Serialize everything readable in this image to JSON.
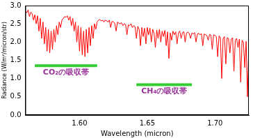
{
  "chart_data": {
    "type": "line",
    "x_label": "Wavelength (micron)",
    "y_label": "Radiance (W/m²/micron/str)",
    "color": "#ff0000",
    "grid": false,
    "xlim": [
      1.56,
      1.725
    ],
    "xticks": [
      {
        "value": 1.6,
        "label": "1.60"
      },
      {
        "value": 1.65,
        "label": "1.65"
      },
      {
        "value": 1.7,
        "label": "1.70"
      }
    ],
    "ylim": [
      0,
      3
    ],
    "yticks": [
      {
        "value": 0,
        "label": "0.0"
      },
      0.5,
      {
        "value": 1,
        "label": "1.0"
      },
      1.5,
      {
        "value": 2,
        "label": "2.0"
      },
      2.5,
      {
        "value": 3,
        "label": "3.0"
      }
    ],
    "annotations": [
      {
        "text": "CO₂の吸収帯",
        "x": [
          1.567,
          1.613
        ],
        "y": 1.35,
        "color": "#33cc33"
      },
      {
        "text": "CH₄の吸収帯",
        "x": [
          1.642,
          1.683
        ],
        "y": 0.83,
        "color": "#33cc33"
      }
    ],
    "x": [
      1.56,
      1.561,
      1.562,
      1.563,
      1.564,
      1.565,
      1.566,
      1.567,
      1.568,
      1.569,
      1.57,
      1.571,
      1.572,
      1.573,
      1.574,
      1.575,
      1.576,
      1.577,
      1.578,
      1.579,
      1.58,
      1.581,
      1.582,
      1.583,
      1.584,
      1.585,
      1.586,
      1.587,
      1.588,
      1.589,
      1.59,
      1.591,
      1.592,
      1.593,
      1.594,
      1.595,
      1.596,
      1.597,
      1.598,
      1.599,
      1.6,
      1.601,
      1.602,
      1.603,
      1.604,
      1.605,
      1.606,
      1.607,
      1.608,
      1.609,
      1.61,
      1.611,
      1.612,
      1.613,
      1.614,
      1.615,
      1.616,
      1.617,
      1.618,
      1.619,
      1.62,
      1.621,
      1.622,
      1.623,
      1.624,
      1.625,
      1.626,
      1.627,
      1.628,
      1.629,
      1.63,
      1.631,
      1.632,
      1.633,
      1.634,
      1.635,
      1.636,
      1.637,
      1.638,
      1.639,
      1.64,
      1.641,
      1.642,
      1.643,
      1.644,
      1.645,
      1.646,
      1.647,
      1.648,
      1.649,
      1.65,
      1.651,
      1.652,
      1.653,
      1.654,
      1.655,
      1.656,
      1.657,
      1.658,
      1.659,
      1.66,
      1.661,
      1.662,
      1.663,
      1.664,
      1.665,
      1.666,
      1.667,
      1.668,
      1.669,
      1.67,
      1.671,
      1.672,
      1.673,
      1.674,
      1.675,
      1.676,
      1.677,
      1.678,
      1.679,
      1.68,
      1.681,
      1.682,
      1.683,
      1.684,
      1.685,
      1.686,
      1.687,
      1.688,
      1.689,
      1.69,
      1.691,
      1.692,
      1.693,
      1.694,
      1.695,
      1.696,
      1.697,
      1.698,
      1.699,
      1.7,
      1.701,
      1.702,
      1.703,
      1.704,
      1.705,
      1.706,
      1.707,
      1.708,
      1.709,
      1.71,
      1.711,
      1.712,
      1.713,
      1.714,
      1.715,
      1.716,
      1.717,
      1.718,
      1.719,
      1.72,
      1.721,
      1.722,
      1.723,
      1.724,
      1.725
    ],
    "values": [
      2.85,
      2.8,
      2.88,
      2.7,
      2.82,
      2.78,
      2.6,
      2.75,
      2.5,
      2.72,
      2.3,
      2.65,
      2.1,
      2.55,
      1.95,
      2.4,
      1.75,
      2.35,
      1.7,
      2.3,
      1.8,
      2.35,
      2.0,
      2.45,
      2.2,
      2.55,
      2.4,
      2.6,
      2.65,
      2.7,
      2.68,
      2.72,
      2.6,
      2.7,
      2.45,
      2.65,
      2.3,
      2.55,
      2.0,
      2.45,
      1.75,
      2.4,
      1.65,
      2.3,
      1.6,
      2.35,
      1.7,
      2.4,
      1.9,
      2.45,
      2.1,
      2.5,
      2.35,
      2.55,
      2.6,
      2.62,
      2.58,
      2.6,
      2.55,
      2.6,
      2.58,
      2.55,
      2.6,
      2.4,
      2.57,
      2.55,
      2.52,
      2.3,
      2.55,
      2.52,
      2.5,
      2.53,
      2.45,
      2.5,
      2.48,
      2.2,
      2.47,
      2.45,
      2.5,
      2.4,
      2.45,
      2.42,
      2.1,
      2.43,
      2.35,
      1.9,
      2.4,
      2.15,
      2.38,
      1.95,
      2.4,
      2.2,
      2.38,
      2.0,
      2.35,
      2.25,
      1.85,
      2.33,
      2.1,
      2.35,
      2.0,
      2.3,
      2.15,
      2.32,
      1.9,
      2.28,
      1.55,
      2.25,
      2.05,
      2.3,
      2.2,
      2.28,
      1.95,
      2.25,
      2.3,
      2.1,
      2.26,
      2.28,
      2.0,
      2.25,
      2.27,
      2.24,
      2.1,
      2.25,
      2.22,
      2.26,
      2.0,
      2.22,
      2.24,
      2.2,
      2.23,
      1.9,
      2.22,
      2.2,
      2.18,
      2.05,
      2.21,
      2.19,
      1.8,
      2.2,
      2.18,
      2.15,
      1.6,
      2.17,
      2.12,
      1.0,
      2.1,
      2.15,
      1.4,
      2.12,
      2.1,
      1.7,
      2.08,
      2.12,
      1.2,
      2.05,
      2.1,
      1.85,
      2.08,
      0.9,
      2.05,
      2.0,
      1.3,
      2.02,
      0.5,
      1.95
    ]
  }
}
